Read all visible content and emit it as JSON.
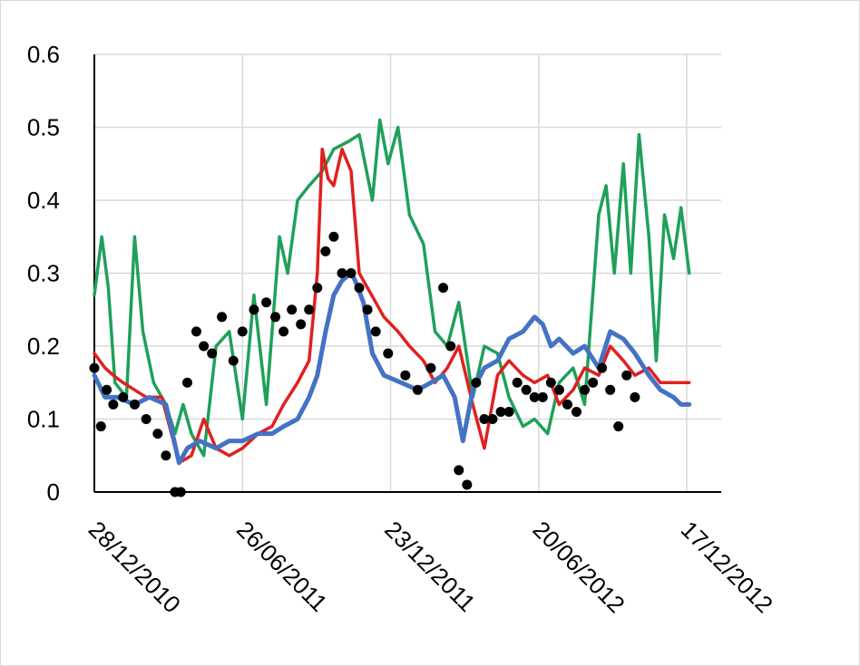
{
  "chart_data": {
    "type": "line",
    "title": "",
    "xlabel": "",
    "ylabel": "",
    "ylim": [
      0,
      0.6
    ],
    "y_ticks": [
      0,
      0.1,
      0.2,
      0.3,
      0.4,
      0.5,
      0.6
    ],
    "y_tick_labels": [
      "0",
      "0.1",
      "0.2",
      "0.3",
      "0.4",
      "0.5",
      "0.6"
    ],
    "x_ticks": [
      "2010-12-28",
      "2011-06-26",
      "2011-12-23",
      "2012-06-20",
      "2012-12-17"
    ],
    "x_tick_labels": [
      "28/12/2010",
      "26/06/2011",
      "23/12/2011",
      "20/06/2012",
      "17/12/2012"
    ],
    "xlim": [
      "2010-12-28",
      "2012-12-17"
    ],
    "grid": true,
    "legend": "none",
    "series": [
      {
        "color": "#4472c4",
        "style": "line",
        "x": [
          "2010-12-28",
          "2011-01-10",
          "2011-01-25",
          "2011-02-15",
          "2011-03-05",
          "2011-03-25",
          "2011-04-10",
          "2011-04-20",
          "2011-05-05",
          "2011-05-25",
          "2011-06-10",
          "2011-06-26",
          "2011-07-15",
          "2011-08-01",
          "2011-08-15",
          "2011-09-01",
          "2011-09-15",
          "2011-09-25",
          "2011-10-05",
          "2011-10-15",
          "2011-10-25",
          "2011-11-05",
          "2011-11-10",
          "2011-11-20",
          "2011-12-01",
          "2011-12-15",
          "2012-01-05",
          "2012-01-25",
          "2012-02-10",
          "2012-02-25",
          "2012-03-10",
          "2012-03-20",
          "2012-04-01",
          "2012-04-15",
          "2012-05-01",
          "2012-05-15",
          "2012-06-01",
          "2012-06-15",
          "2012-06-25",
          "2012-07-05",
          "2012-07-15",
          "2012-08-01",
          "2012-08-15",
          "2012-09-01",
          "2012-09-15",
          "2012-10-01",
          "2012-10-15",
          "2012-11-01",
          "2012-11-15",
          "2012-12-01",
          "2012-12-10",
          "2012-12-20"
        ],
        "values": [
          0.16,
          0.13,
          0.13,
          0.12,
          0.13,
          0.12,
          0.04,
          0.06,
          0.07,
          0.06,
          0.07,
          0.07,
          0.08,
          0.08,
          0.09,
          0.1,
          0.13,
          0.16,
          0.22,
          0.27,
          0.29,
          0.3,
          0.29,
          0.26,
          0.19,
          0.16,
          0.15,
          0.14,
          0.15,
          0.16,
          0.13,
          0.07,
          0.14,
          0.17,
          0.18,
          0.21,
          0.22,
          0.24,
          0.23,
          0.2,
          0.21,
          0.19,
          0.2,
          0.17,
          0.22,
          0.21,
          0.19,
          0.16,
          0.14,
          0.13,
          0.12,
          0.12
        ]
      },
      {
        "color": "#e02020",
        "style": "line",
        "x": [
          "2010-12-28",
          "2011-01-10",
          "2011-01-20",
          "2011-02-01",
          "2011-02-15",
          "2011-03-01",
          "2011-03-20",
          "2011-04-10",
          "2011-04-25",
          "2011-05-10",
          "2011-05-25",
          "2011-06-10",
          "2011-06-26",
          "2011-07-15",
          "2011-08-01",
          "2011-08-15",
          "2011-09-01",
          "2011-09-15",
          "2011-09-25",
          "2011-10-01",
          "2011-10-08",
          "2011-10-15",
          "2011-10-25",
          "2011-11-05",
          "2011-11-15",
          "2011-11-25",
          "2011-12-05",
          "2011-12-15",
          "2012-01-01",
          "2012-01-15",
          "2012-02-01",
          "2012-02-15",
          "2012-03-01",
          "2012-03-15",
          "2012-04-01",
          "2012-04-15",
          "2012-05-01",
          "2012-05-15",
          "2012-06-01",
          "2012-06-15",
          "2012-07-01",
          "2012-07-15",
          "2012-08-01",
          "2012-08-15",
          "2012-09-01",
          "2012-09-15",
          "2012-10-01",
          "2012-10-15",
          "2012-11-01",
          "2012-11-15",
          "2012-12-01",
          "2012-12-20"
        ],
        "values": [
          0.19,
          0.17,
          0.16,
          0.15,
          0.14,
          0.13,
          0.13,
          0.04,
          0.05,
          0.1,
          0.06,
          0.05,
          0.06,
          0.08,
          0.09,
          0.12,
          0.15,
          0.18,
          0.3,
          0.47,
          0.43,
          0.42,
          0.47,
          0.44,
          0.3,
          0.28,
          0.26,
          0.24,
          0.22,
          0.2,
          0.18,
          0.15,
          0.17,
          0.2,
          0.12,
          0.06,
          0.16,
          0.18,
          0.16,
          0.15,
          0.16,
          0.12,
          0.14,
          0.17,
          0.16,
          0.2,
          0.18,
          0.16,
          0.17,
          0.15,
          0.15,
          0.15
        ]
      },
      {
        "color": "#1fa05a",
        "style": "line",
        "x": [
          "2010-12-28",
          "2011-01-06",
          "2011-01-14",
          "2011-01-22",
          "2011-02-05",
          "2011-02-15",
          "2011-02-25",
          "2011-03-10",
          "2011-03-25",
          "2011-04-05",
          "2011-04-15",
          "2011-04-25",
          "2011-05-10",
          "2011-05-25",
          "2011-06-10",
          "2011-06-26",
          "2011-07-10",
          "2011-07-25",
          "2011-08-10",
          "2011-08-20",
          "2011-09-01",
          "2011-09-15",
          "2011-10-01",
          "2011-10-15",
          "2011-11-01",
          "2011-11-15",
          "2011-12-01",
          "2011-12-10",
          "2011-12-20",
          "2012-01-01",
          "2012-01-15",
          "2012-02-01",
          "2012-02-15",
          "2012-03-01",
          "2012-03-15",
          "2012-04-01",
          "2012-04-15",
          "2012-05-01",
          "2012-05-15",
          "2012-06-01",
          "2012-06-15",
          "2012-07-01",
          "2012-07-15",
          "2012-08-01",
          "2012-08-15",
          "2012-09-01",
          "2012-09-10",
          "2012-09-20",
          "2012-10-01",
          "2012-10-10",
          "2012-10-20",
          "2012-11-01",
          "2012-11-10",
          "2012-11-20",
          "2012-12-01",
          "2012-12-10",
          "2012-12-20"
        ],
        "values": [
          0.27,
          0.35,
          0.28,
          0.15,
          0.13,
          0.35,
          0.22,
          0.15,
          0.12,
          0.08,
          0.12,
          0.08,
          0.05,
          0.2,
          0.22,
          0.1,
          0.27,
          0.12,
          0.35,
          0.3,
          0.4,
          0.42,
          0.44,
          0.47,
          0.48,
          0.49,
          0.4,
          0.51,
          0.45,
          0.5,
          0.38,
          0.34,
          0.22,
          0.2,
          0.26,
          0.13,
          0.2,
          0.19,
          0.13,
          0.09,
          0.1,
          0.08,
          0.15,
          0.17,
          0.12,
          0.38,
          0.42,
          0.3,
          0.45,
          0.3,
          0.49,
          0.35,
          0.18,
          0.38,
          0.32,
          0.39,
          0.3
        ]
      },
      {
        "color": "#000000",
        "style": "markers",
        "x": [
          "2010-12-28",
          "2011-01-05",
          "2011-01-12",
          "2011-01-20",
          "2011-02-01",
          "2011-02-15",
          "2011-03-01",
          "2011-03-15",
          "2011-03-25",
          "2011-04-05",
          "2011-04-12",
          "2011-04-20",
          "2011-05-01",
          "2011-05-10",
          "2011-05-20",
          "2011-06-01",
          "2011-06-15",
          "2011-06-26",
          "2011-07-10",
          "2011-07-25",
          "2011-08-05",
          "2011-08-15",
          "2011-08-25",
          "2011-09-05",
          "2011-09-15",
          "2011-09-25",
          "2011-10-05",
          "2011-10-15",
          "2011-10-25",
          "2011-11-05",
          "2011-11-15",
          "2011-11-25",
          "2011-12-05",
          "2011-12-20",
          "2012-01-10",
          "2012-01-25",
          "2012-02-10",
          "2012-02-25",
          "2012-03-05",
          "2012-03-15",
          "2012-03-25",
          "2012-04-05",
          "2012-04-15",
          "2012-04-25",
          "2012-05-05",
          "2012-05-15",
          "2012-05-25",
          "2012-06-05",
          "2012-06-15",
          "2012-06-25",
          "2012-07-05",
          "2012-07-15",
          "2012-07-25",
          "2012-08-05",
          "2012-08-15",
          "2012-08-25",
          "2012-09-05",
          "2012-09-15",
          "2012-09-25",
          "2012-10-05",
          "2012-10-15"
        ],
        "values": [
          0.17,
          0.09,
          0.14,
          0.12,
          0.13,
          0.12,
          0.1,
          0.08,
          0.05,
          0.0,
          0.0,
          0.15,
          0.22,
          0.2,
          0.19,
          0.24,
          0.18,
          0.22,
          0.25,
          0.26,
          0.24,
          0.22,
          0.25,
          0.23,
          0.25,
          0.28,
          0.33,
          0.35,
          0.3,
          0.3,
          0.28,
          0.25,
          0.22,
          0.19,
          0.16,
          0.14,
          0.17,
          0.28,
          0.2,
          0.03,
          0.01,
          0.15,
          0.1,
          0.1,
          0.11,
          0.11,
          0.15,
          0.14,
          0.13,
          0.13,
          0.15,
          0.14,
          0.12,
          0.11,
          0.14,
          0.15,
          0.17,
          0.14,
          0.09,
          0.16,
          0.13
        ]
      }
    ]
  }
}
